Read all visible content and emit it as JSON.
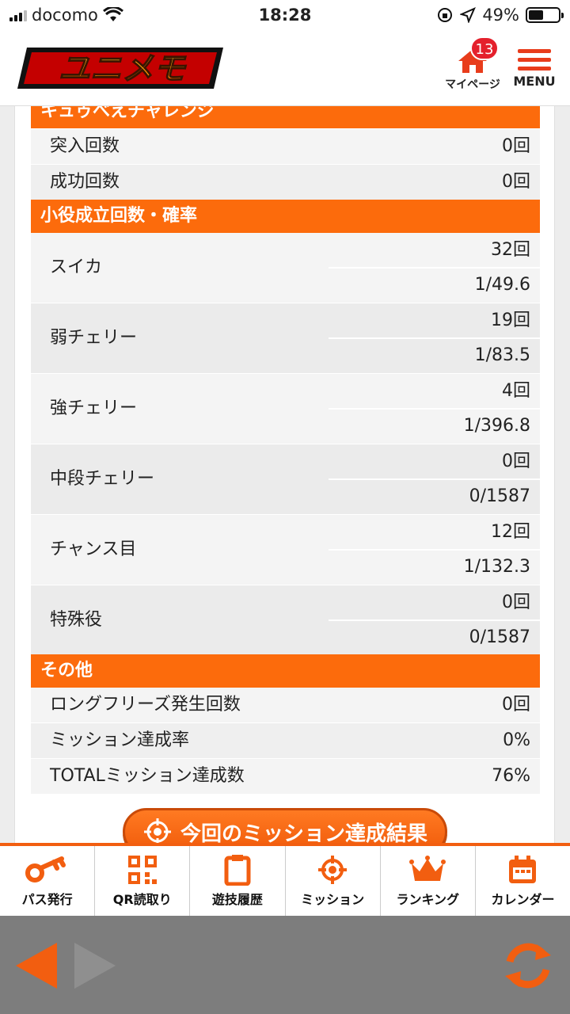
{
  "status_bar": {
    "carrier": "docomo",
    "time": "18:28",
    "battery": "49%"
  },
  "header": {
    "logo_text": "ユニメモ",
    "mypage_label": "マイページ",
    "mypage_badge": "13",
    "menu_label": "MENU"
  },
  "sections": {
    "challenge": {
      "title": "キュゥべえチャレンジ",
      "rows": [
        {
          "label": "突入回数",
          "value": "0回"
        },
        {
          "label": "成功回数",
          "value": "0回"
        }
      ]
    },
    "roles": {
      "title": "小役成立回数・確率",
      "rows": [
        {
          "label": "スイカ",
          "count": "32回",
          "rate": "1/49.6"
        },
        {
          "label": "弱チェリー",
          "count": "19回",
          "rate": "1/83.5"
        },
        {
          "label": "強チェリー",
          "count": "4回",
          "rate": "1/396.8"
        },
        {
          "label": "中段チェリー",
          "count": "0回",
          "rate": "0/1587"
        },
        {
          "label": "チャンス目",
          "count": "12回",
          "rate": "1/132.3"
        },
        {
          "label": "特殊役",
          "count": "0回",
          "rate": "0/1587"
        }
      ]
    },
    "other": {
      "title": "その他",
      "rows": [
        {
          "label": "ロングフリーズ発生回数",
          "value": "0回"
        },
        {
          "label": "ミッション達成率",
          "value": "0%"
        },
        {
          "label": "TOTALミッション達成数",
          "value": "76%"
        }
      ]
    }
  },
  "mission_button_label": "今回のミッション達成結果",
  "tabs": [
    {
      "label": "パス発行",
      "icon": "key-icon"
    },
    {
      "label": "QR読取り",
      "icon": "qr-icon"
    },
    {
      "label": "遊技履歴",
      "icon": "clipboard-icon"
    },
    {
      "label": "ミッション",
      "icon": "target-icon"
    },
    {
      "label": "ランキング",
      "icon": "crown-icon"
    },
    {
      "label": "カレンダー",
      "icon": "calendar-icon"
    }
  ],
  "colors": {
    "accent": "#fc6b0c",
    "badge": "#e4202c",
    "toolbar": "#7d7d7d"
  }
}
